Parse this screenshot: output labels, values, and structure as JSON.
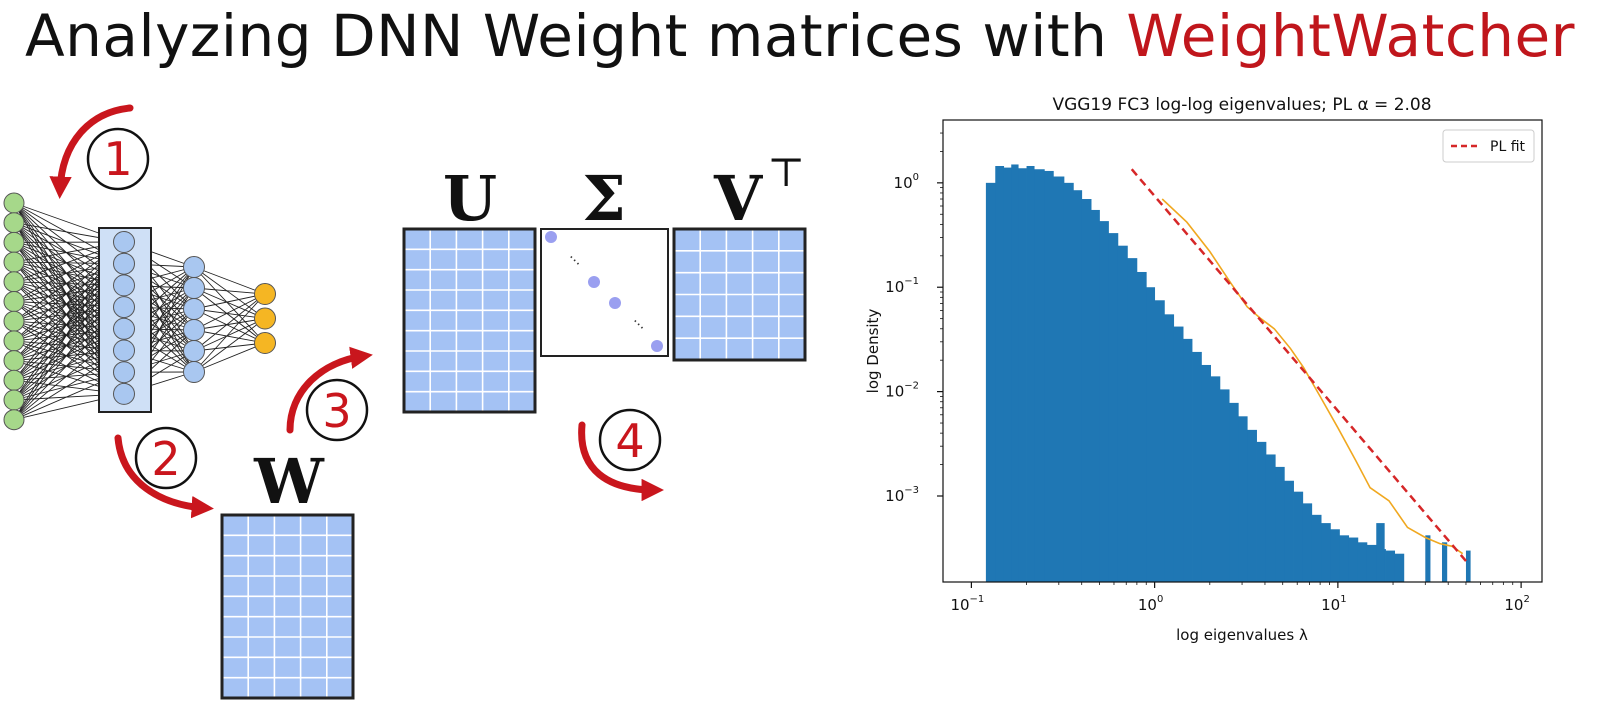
{
  "title": {
    "prefix": "Analyzing DNN Weight matrices with",
    "brand": "WeightWatcher"
  },
  "diagram": {
    "steps": [
      "1",
      "2",
      "3",
      "4"
    ],
    "matrix_labels": {
      "W": "W",
      "U": "U",
      "Sigma": "Σ",
      "V": "V",
      "V_sup": "⊤"
    },
    "ellipsis": "⋯",
    "colors": {
      "input_node": "#a6d88a",
      "hidden_node": "#a9c7f0",
      "output_node": "#f5b623",
      "matrix_fill": "#a4c2f4",
      "sigma_dot": "#9a9ff0",
      "arrow": "#c9161d"
    }
  },
  "chart_data": {
    "type": "bar",
    "title": "VGG19 FC3 log-log eigenvalues; PL α = 2.08",
    "xlabel": "log eigenvalues λ",
    "ylabel": "log Density",
    "xscale": "log",
    "yscale": "log",
    "xlim": [
      0.07,
      130
    ],
    "ylim": [
      0.00015,
      4.0
    ],
    "xticks": [
      {
        "base": "10",
        "exp": "−1"
      },
      {
        "base": "10",
        "exp": "0"
      },
      {
        "base": "10",
        "exp": "1"
      },
      {
        "base": "10",
        "exp": "2"
      }
    ],
    "yticks": [
      {
        "base": "10",
        "exp": "−3"
      },
      {
        "base": "10",
        "exp": "−2"
      },
      {
        "base": "10",
        "exp": "−1"
      },
      {
        "base": "10",
        "exp": "0"
      }
    ],
    "legend": {
      "label": "PL fit",
      "placement": "top-right"
    },
    "grid": false,
    "colors": {
      "bars": "#1f77b4",
      "pl_fit": "#d62728",
      "kde": "#f0a820"
    },
    "histogram": {
      "x_edges": [
        0.12,
        0.135,
        0.15,
        0.165,
        0.18,
        0.2,
        0.22,
        0.25,
        0.28,
        0.32,
        0.36,
        0.4,
        0.45,
        0.5,
        0.56,
        0.63,
        0.71,
        0.8,
        0.9,
        1.0,
        1.13,
        1.27,
        1.43,
        1.6,
        1.8,
        2.02,
        2.27,
        2.55,
        2.86,
        3.2,
        3.6,
        4.05,
        4.55,
        5.1,
        5.73,
        6.43,
        7.2,
        8.1,
        9.1,
        10.2,
        11.45,
        12.85,
        14.4,
        16.2,
        18.2,
        20.4,
        22.9
      ],
      "density": [
        1.0,
        1.45,
        1.4,
        1.5,
        1.38,
        1.45,
        1.35,
        1.3,
        1.15,
        1.0,
        0.85,
        0.7,
        0.55,
        0.43,
        0.33,
        0.25,
        0.19,
        0.14,
        0.1,
        0.075,
        0.055,
        0.042,
        0.032,
        0.024,
        0.018,
        0.014,
        0.0105,
        0.0078,
        0.0058,
        0.0043,
        0.0033,
        0.0025,
        0.0019,
        0.0014,
        0.0011,
        0.00085,
        0.00066,
        0.00055,
        0.00048,
        0.00042,
        0.0004,
        0.00036,
        0.00034,
        0.00031,
        0.0003,
        0.00028
      ],
      "isolated_bars": [
        {
          "x0": 16.2,
          "x1": 18.0,
          "density": 0.00055
        },
        {
          "x0": 30.0,
          "x1": 32.0,
          "density": 0.00042
        },
        {
          "x0": 37.0,
          "x1": 39.5,
          "density": 0.00036
        },
        {
          "x0": 50.0,
          "x1": 53.0,
          "density": 0.0003
        }
      ]
    },
    "pl_fit": {
      "x": [
        0.75,
        52
      ],
      "y": [
        1.35,
        0.00022
      ]
    },
    "kde": {
      "x": [
        1.1,
        1.5,
        2.0,
        2.6,
        3.2,
        3.8,
        4.5,
        5.5,
        6.5,
        8.0,
        10.0,
        12.5,
        15.0,
        19.0,
        24.0,
        30.0,
        36.0,
        42.0,
        48.0
      ],
      "y": [
        0.7,
        0.42,
        0.22,
        0.11,
        0.065,
        0.05,
        0.04,
        0.026,
        0.017,
        0.009,
        0.0045,
        0.0022,
        0.0012,
        0.0009,
        0.0005,
        0.0004,
        0.00035,
        0.00033,
        0.00028
      ]
    }
  }
}
